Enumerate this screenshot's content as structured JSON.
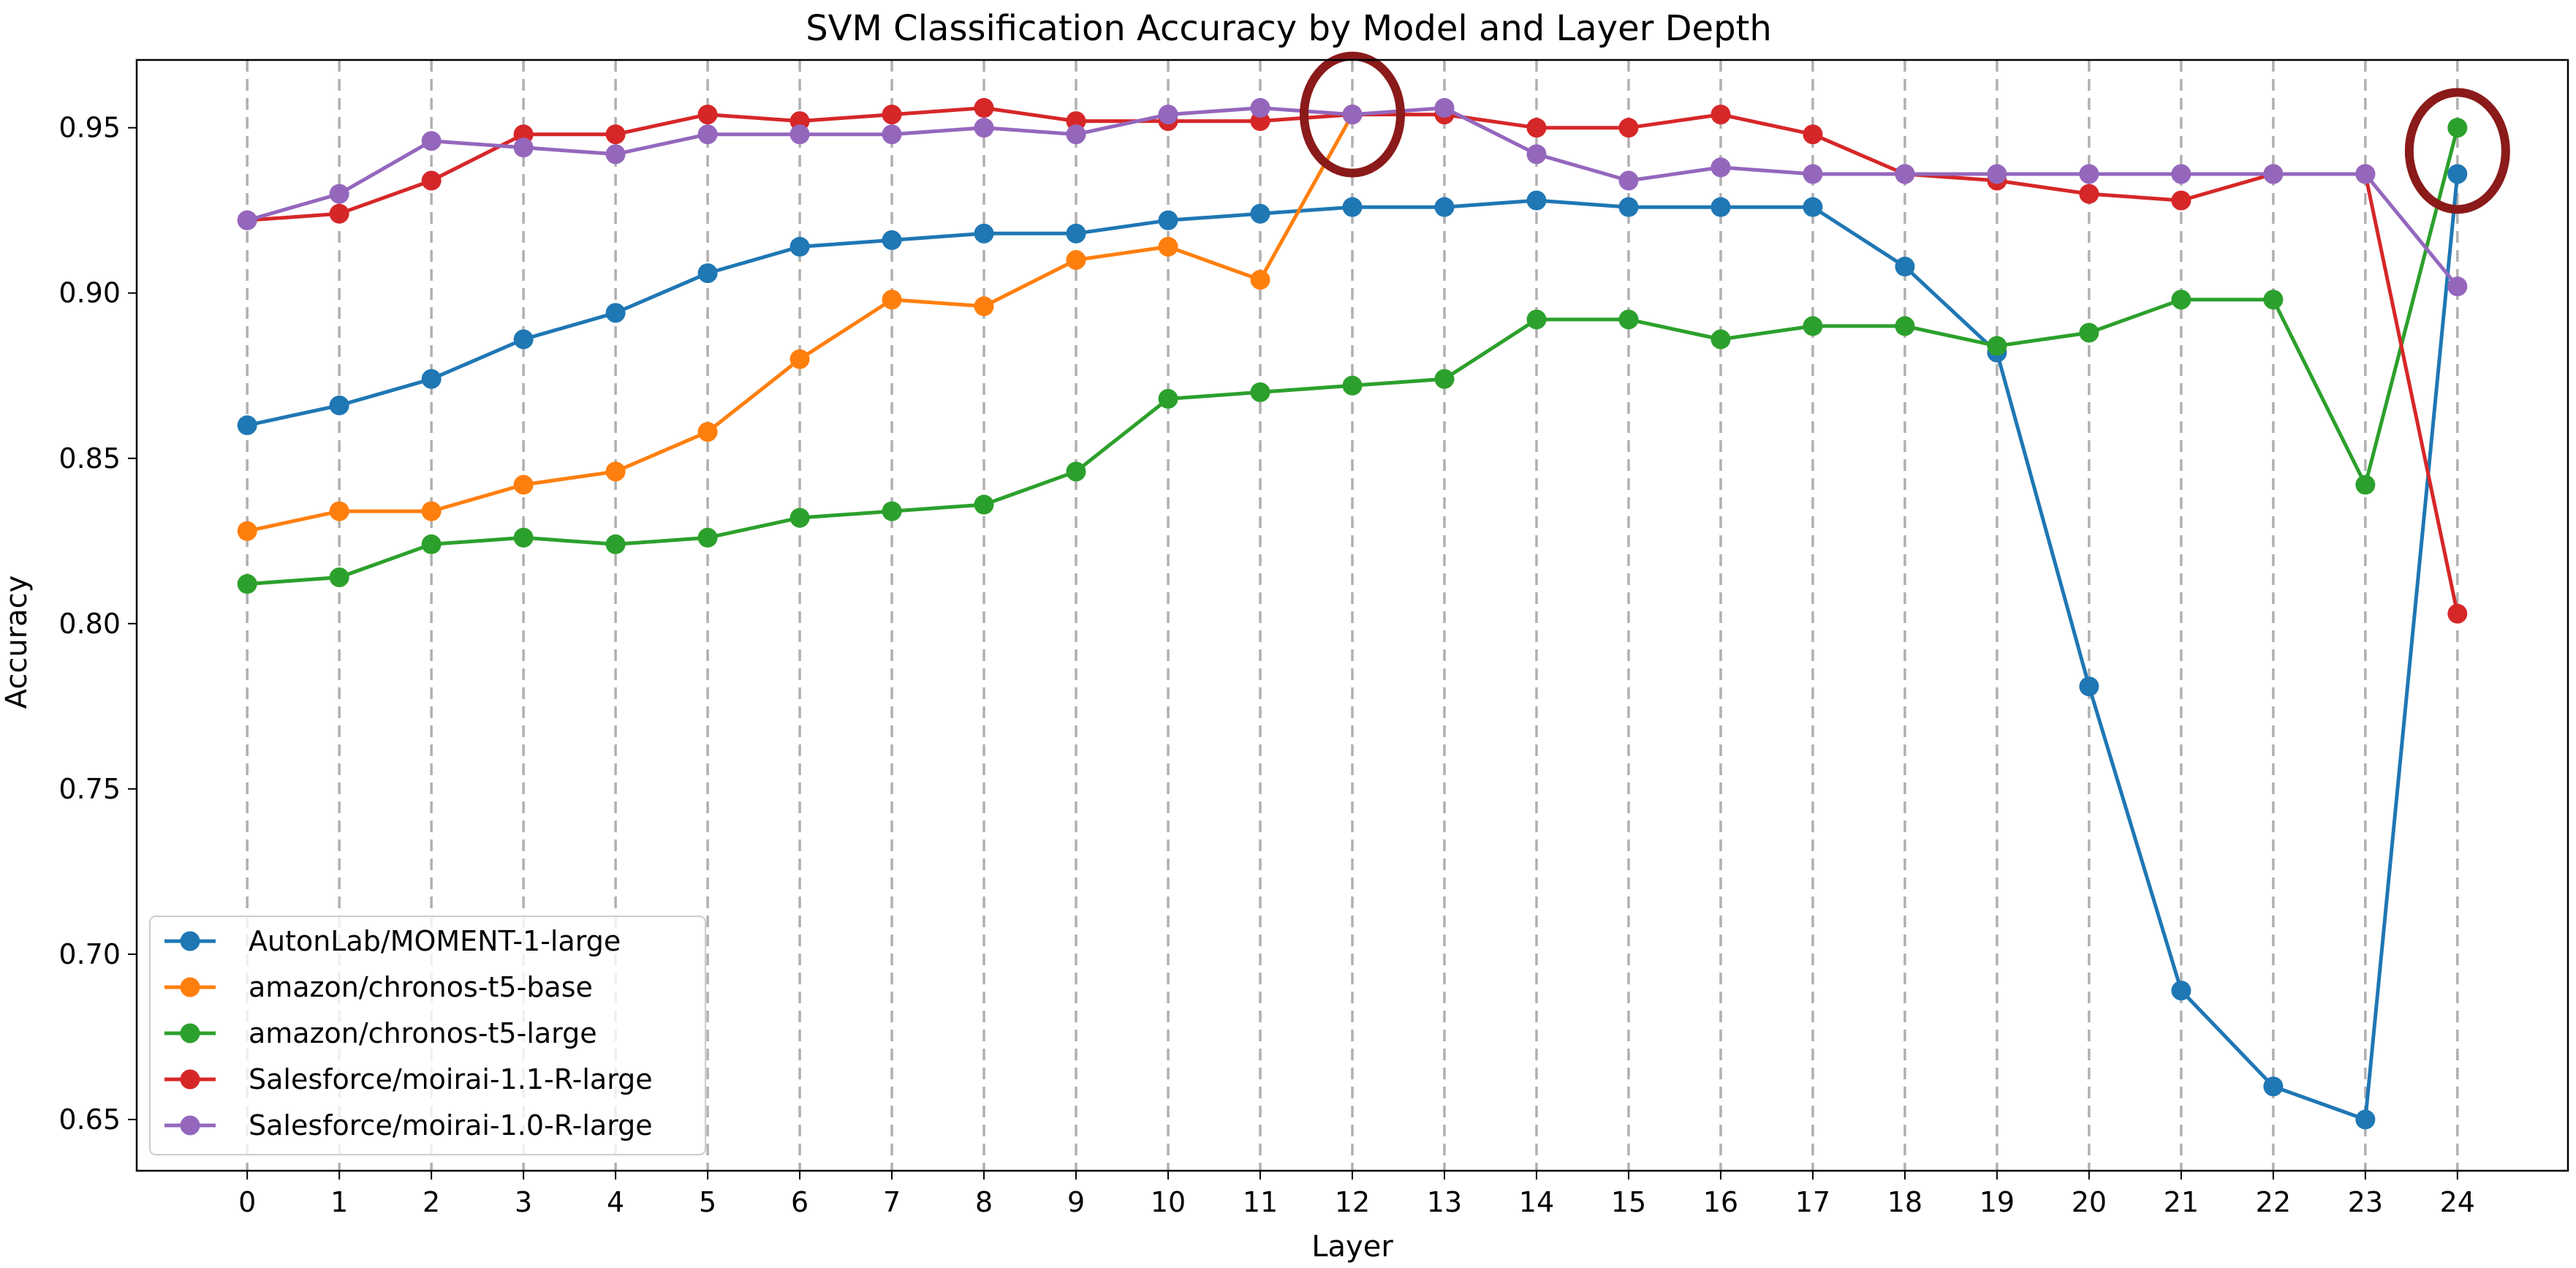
{
  "chart_data": {
    "type": "line",
    "title": "SVM Classification Accuracy by Model and Layer Depth",
    "xlabel": "Layer",
    "ylabel": "Accuracy",
    "x": [
      0,
      1,
      2,
      3,
      4,
      5,
      6,
      7,
      8,
      9,
      10,
      11,
      12,
      13,
      14,
      15,
      16,
      17,
      18,
      19,
      20,
      21,
      22,
      23,
      24
    ],
    "xlim": [
      -1.2,
      25.2
    ],
    "ylim": [
      0.6345,
      0.9705
    ],
    "yticks": [
      0.65,
      0.7,
      0.75,
      0.8,
      0.85,
      0.9,
      0.95
    ],
    "ytick_labels": [
      "0.65",
      "0.70",
      "0.75",
      "0.80",
      "0.85",
      "0.90",
      "0.95"
    ],
    "grid": "vertical-dashed",
    "legend_position": "lower-left",
    "series": [
      {
        "name": "AutonLab/MOMENT-1-large",
        "color": "#1f77b4",
        "values": [
          0.86,
          0.866,
          0.874,
          0.886,
          0.894,
          0.906,
          0.914,
          0.916,
          0.918,
          0.918,
          0.922,
          0.924,
          0.926,
          0.926,
          0.928,
          0.926,
          0.926,
          0.926,
          0.908,
          0.882,
          0.781,
          0.689,
          0.66,
          0.65,
          0.936
        ]
      },
      {
        "name": "amazon/chronos-t5-base",
        "color": "#ff7f0e",
        "values": [
          0.828,
          0.834,
          0.834,
          0.842,
          0.846,
          0.858,
          0.88,
          0.898,
          0.896,
          0.91,
          0.914,
          0.904,
          0.954,
          null,
          null,
          null,
          null,
          null,
          null,
          null,
          null,
          null,
          null,
          null,
          null
        ]
      },
      {
        "name": "amazon/chronos-t5-large",
        "color": "#2ca02c",
        "values": [
          0.812,
          0.814,
          0.824,
          0.826,
          0.824,
          0.826,
          0.832,
          0.834,
          0.836,
          0.846,
          0.868,
          0.87,
          0.872,
          0.874,
          0.892,
          0.892,
          0.886,
          0.89,
          0.89,
          0.884,
          0.888,
          0.898,
          0.898,
          0.842,
          0.95
        ]
      },
      {
        "name": "Salesforce/moirai-1.1-R-large",
        "color": "#d62728",
        "values": [
          0.922,
          0.924,
          0.934,
          0.948,
          0.948,
          0.954,
          0.952,
          0.954,
          0.956,
          0.952,
          0.952,
          0.952,
          0.954,
          0.954,
          0.95,
          0.95,
          0.954,
          0.948,
          0.936,
          0.934,
          0.93,
          0.928,
          0.936,
          0.936,
          0.803
        ]
      },
      {
        "name": "Salesforce/moirai-1.0-R-large",
        "color": "#9467bd",
        "values": [
          0.922,
          0.93,
          0.946,
          0.944,
          0.942,
          0.948,
          0.948,
          0.948,
          0.95,
          0.948,
          0.954,
          0.956,
          0.954,
          0.956,
          0.942,
          0.934,
          0.938,
          0.936,
          0.936,
          0.936,
          0.936,
          0.936,
          0.936,
          0.936,
          0.902
        ]
      }
    ],
    "annotations": [
      {
        "type": "circle",
        "x": 12,
        "y": 0.954,
        "color": "#8b1a1a"
      },
      {
        "type": "circle",
        "x": 24,
        "y": 0.943,
        "color": "#8b1a1a"
      }
    ]
  }
}
